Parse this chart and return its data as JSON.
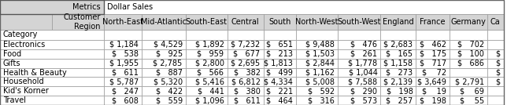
{
  "col_names": [
    "North-East",
    "Mid-Atlantic",
    "South-East",
    "Central",
    "South",
    "North-West",
    "South-West",
    "England",
    "France",
    "Germany",
    "Ca"
  ],
  "categories": [
    "Electronics",
    "Food",
    "Gifts",
    "Health & Beauty",
    "Household",
    "Kid's Korner",
    "Travel"
  ],
  "values": [
    [
      "$ 1,184",
      "$ 4,529",
      "$ 1,892",
      "$ 7,232",
      "$   651",
      "$ 9,488",
      "$   476",
      "$ 2,683",
      "$   462",
      "$   702",
      ""
    ],
    [
      "$   538",
      "$   925",
      "$   959",
      "$   677",
      "$   213",
      "$ 1,503",
      "$   261",
      "$   165",
      "$   175",
      "$   100",
      "$"
    ],
    [
      "$ 1,955",
      "$ 2,785",
      "$ 2,800",
      "$ 2,695",
      "$ 1,813",
      "$ 2,844",
      "$ 1,778",
      "$ 1,158",
      "$   717",
      "$   686",
      "$"
    ],
    [
      "$   611",
      "$   887",
      "$   566",
      "$   382",
      "$   499",
      "$ 1,162",
      "$ 1,044",
      "$   273",
      "$    72",
      "",
      "$"
    ],
    [
      "$ 5,787",
      "$ 5,320",
      "$ 5,416",
      "$ 6,812",
      "$ 4,334",
      "$ 5,008",
      "$ 7,588",
      "$ 2,139",
      "$ 3,649",
      "$ 2,791",
      "$"
    ],
    [
      "$   247",
      "$   422",
      "$   441",
      "$   380",
      "$   221",
      "$   592",
      "$   290",
      "$   198",
      "$    19",
      "$    69",
      ""
    ],
    [
      "$   608",
      "$   559",
      "$ 1,096",
      "$   611",
      "$   464",
      "$   316",
      "$   573",
      "$   257",
      "$   198",
      "$    55",
      ""
    ]
  ],
  "bg_gray": "#d4d4d4",
  "bg_white": "#ffffff",
  "border_color": "#999999",
  "text_color": "#000000",
  "font_size": 7.0,
  "figwidth": 6.44,
  "figheight": 1.34
}
